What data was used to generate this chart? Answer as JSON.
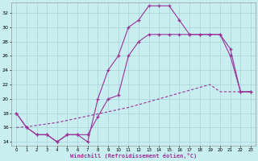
{
  "background_color": "#c8eef0",
  "grid_color": "#a8d8dc",
  "line_color": "#993399",
  "xlabel": "Windchill (Refroidissement éolien,°C)",
  "xlim": [
    -0.5,
    23.5
  ],
  "ylim": [
    13.5,
    33.5
  ],
  "ytick_vals": [
    14,
    16,
    18,
    20,
    22,
    24,
    26,
    28,
    30,
    32
  ],
  "xtick_vals": [
    0,
    1,
    2,
    3,
    4,
    5,
    6,
    7,
    8,
    9,
    10,
    11,
    12,
    13,
    14,
    15,
    16,
    17,
    18,
    19,
    20,
    21,
    22,
    23
  ],
  "curve1_x": [
    0,
    1,
    2,
    3,
    4,
    5,
    6,
    7,
    8,
    9,
    10,
    11,
    12,
    13,
    14,
    15,
    16,
    17,
    18,
    19,
    20,
    21,
    22,
    23
  ],
  "curve1_y": [
    18,
    16,
    15,
    15,
    14,
    15,
    15,
    14,
    20,
    24,
    26,
    30,
    31,
    33,
    33,
    33,
    31,
    29,
    29,
    29,
    29,
    27,
    21,
    21
  ],
  "curve2_x": [
    0,
    1,
    2,
    3,
    4,
    5,
    6,
    7,
    8,
    9,
    10,
    11,
    12,
    13,
    14,
    15,
    16,
    17,
    18,
    19,
    20,
    21,
    22,
    23
  ],
  "curve2_y": [
    18,
    16,
    15,
    15,
    14,
    15,
    15,
    15,
    17.5,
    20,
    20.5,
    26,
    28,
    29,
    29,
    29,
    29,
    29,
    29,
    29,
    29,
    26,
    21,
    21
  ],
  "curve3_x": [
    0,
    1,
    2,
    3,
    4,
    5,
    6,
    7,
    8,
    9,
    10,
    11,
    12,
    13,
    14,
    15,
    16,
    17,
    18,
    19,
    20,
    21,
    22,
    23
  ],
  "curve3_y": [
    16,
    16.1,
    16.3,
    16.5,
    16.7,
    17.0,
    17.3,
    17.6,
    17.9,
    18.2,
    18.5,
    18.8,
    19.2,
    19.6,
    20.0,
    20.4,
    20.8,
    21.2,
    21.6,
    22.0,
    21.0,
    21.0,
    21.0,
    21.0
  ]
}
